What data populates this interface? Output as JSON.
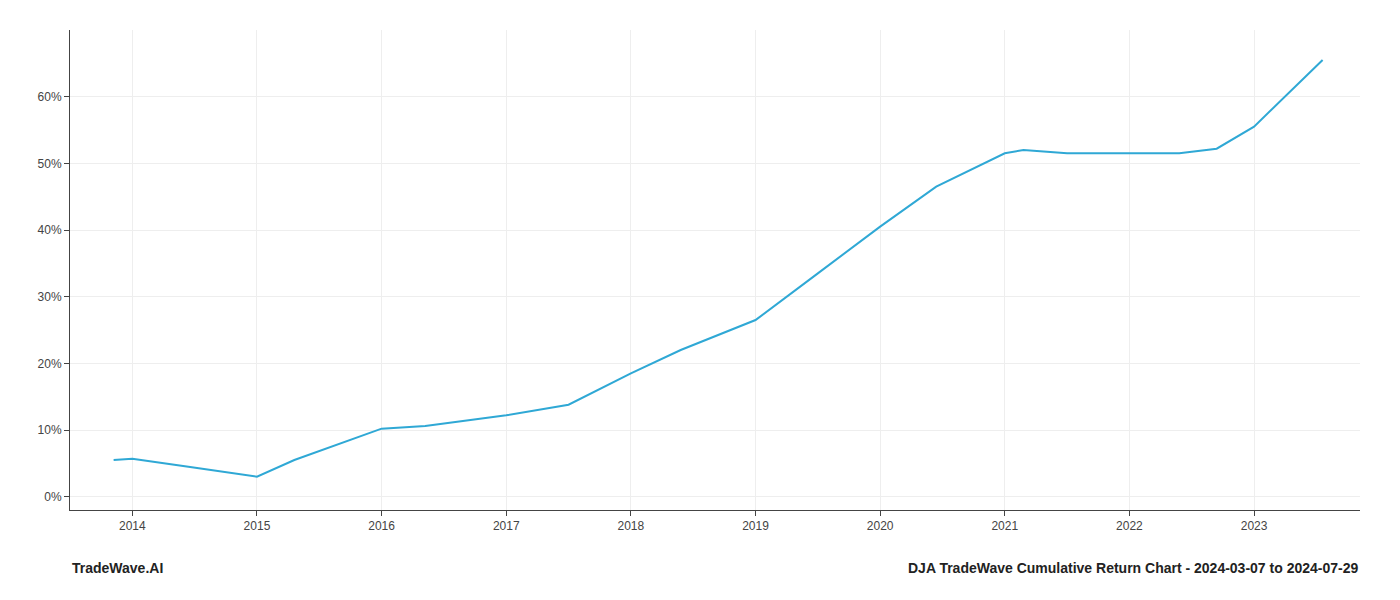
{
  "chart_data": {
    "type": "line",
    "title": "DJA TradeWave Cumulative Return Chart - 2024-03-07 to 2024-07-29",
    "annotations": [
      "TradeWave.AI"
    ],
    "x": [
      2013.85,
      2014.0,
      2014.45,
      2015.0,
      2015.3,
      2016.0,
      2016.35,
      2016.6,
      2017.0,
      2017.5,
      2018.0,
      2018.4,
      2019.0,
      2019.5,
      2020.0,
      2020.45,
      2021.0,
      2021.15,
      2021.5,
      2022.0,
      2022.4,
      2022.7,
      2023.0,
      2023.55
    ],
    "values": [
      5.5,
      5.7,
      4.5,
      3.0,
      5.5,
      10.2,
      10.6,
      11.2,
      12.2,
      13.8,
      18.5,
      22.0,
      26.5,
      33.5,
      40.5,
      46.5,
      51.5,
      52.0,
      51.5,
      51.5,
      51.5,
      52.2,
      55.5,
      65.5
    ],
    "color": "#2fa8d5",
    "xlim": [
      2013.5,
      2023.85
    ],
    "ylim": [
      -2,
      70
    ],
    "xticks": [
      2014,
      2015,
      2016,
      2017,
      2018,
      2019,
      2020,
      2021,
      2022,
      2023
    ],
    "yticks": [
      {
        "value": 0,
        "label": "0%"
      },
      {
        "value": 10,
        "label": "10%"
      },
      {
        "value": 20,
        "label": "20%"
      },
      {
        "value": 30,
        "label": "30%"
      },
      {
        "value": 40,
        "label": "40%"
      },
      {
        "value": 50,
        "label": "50%"
      },
      {
        "value": 60,
        "label": "60%"
      }
    ],
    "grid": true
  }
}
